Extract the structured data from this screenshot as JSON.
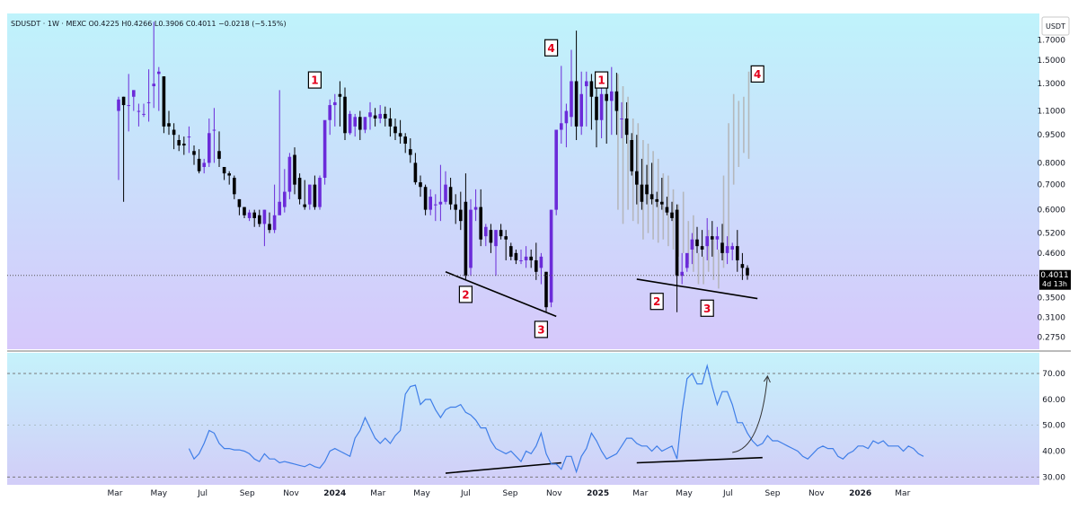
{
  "header": {
    "symbol": "SDUSDT",
    "interval": "1W",
    "exchange": "MEXC",
    "ohlc": "O0.4225  H0.4266  L0.3906  C0.4011  −0.0218 (−5.15%)",
    "currency": "USDT"
  },
  "price_label": {
    "value": "0.4011",
    "countdown": "4d 13h"
  },
  "colors": {
    "up": "#6b2bd9",
    "down": "#000000",
    "projection": "#b0b0b0",
    "rsi_line": "#3f7ee8",
    "marker_text": "#e3001b",
    "price_bg_top": "#bff3fb",
    "price_bg_bottom": "#d6c8fb",
    "rsi_bg_top": "#c5f2fb",
    "rsi_bg_bottom": "#d2cdf8"
  },
  "chart_data": [
    {
      "type": "candlestick",
      "name": "price",
      "interval": "1W",
      "y_scale": "log",
      "ylim": [
        0.255,
        2.0
      ],
      "y_ticks": [
        "1.7000",
        "1.5000",
        "1.3000",
        "1.1000",
        "0.9500",
        "0.8000",
        "0.7000",
        "0.6000",
        "0.5200",
        "0.4600",
        "0.3500",
        "0.3100",
        "0.2750"
      ],
      "x_ticks": [
        "Mar",
        "May",
        "Jul",
        "Sep",
        "Nov",
        "2024",
        "Mar",
        "May",
        "Jul",
        "Sep",
        "Nov",
        "2025",
        "Mar",
        "May",
        "Jul",
        "Sep",
        "Nov",
        "2026",
        "Mar"
      ],
      "start_date": "2023-03-06",
      "candles": [
        [
          1.1,
          1.2,
          1.18,
          0.72
        ],
        [
          1.2,
          1.2,
          1.14,
          0.63
        ],
        [
          1.14,
          1.38,
          1.14,
          0.97
        ],
        [
          1.2,
          1.25,
          1.25,
          1.1
        ],
        [
          1.1,
          1.15,
          1.1,
          1.0
        ],
        [
          1.08,
          1.15,
          1.08,
          1.06
        ],
        [
          1.16,
          1.42,
          1.16,
          1.03
        ],
        [
          1.28,
          1.9,
          1.3,
          1.12
        ],
        [
          1.38,
          1.44,
          1.4,
          1.1
        ],
        [
          1.36,
          1.36,
          1.0,
          0.96
        ],
        [
          1.02,
          1.1,
          1.0,
          0.95
        ],
        [
          0.98,
          1.02,
          0.95,
          0.87
        ],
        [
          0.92,
          0.95,
          0.89,
          0.86
        ],
        [
          0.9,
          0.94,
          0.89,
          0.84
        ],
        [
          0.94,
          1.0,
          0.94,
          0.85
        ],
        [
          0.86,
          0.89,
          0.84,
          0.79
        ],
        [
          0.82,
          0.87,
          0.76,
          0.75
        ],
        [
          0.78,
          0.82,
          0.8,
          0.75
        ],
        [
          0.8,
          1.05,
          0.96,
          0.78
        ],
        [
          0.98,
          1.12,
          0.98,
          0.8
        ],
        [
          0.86,
          0.97,
          0.82,
          0.78
        ],
        [
          0.78,
          0.78,
          0.75,
          0.72
        ],
        [
          0.75,
          0.76,
          0.74,
          0.7
        ],
        [
          0.73,
          0.74,
          0.66,
          0.64
        ],
        [
          0.64,
          0.64,
          0.61,
          0.58
        ],
        [
          0.61,
          0.61,
          0.58,
          0.57
        ],
        [
          0.57,
          0.6,
          0.59,
          0.56
        ],
        [
          0.59,
          0.6,
          0.57,
          0.54
        ],
        [
          0.58,
          0.6,
          0.55,
          0.54
        ],
        [
          0.55,
          0.6,
          0.6,
          0.48
        ],
        [
          0.55,
          0.59,
          0.53,
          0.52
        ],
        [
          0.53,
          0.7,
          0.58,
          0.52
        ],
        [
          0.58,
          1.25,
          0.63,
          0.6
        ],
        [
          0.61,
          0.77,
          0.67,
          0.59
        ],
        [
          0.67,
          0.85,
          0.83,
          0.64
        ],
        [
          0.84,
          0.88,
          0.7,
          0.66
        ],
        [
          0.73,
          0.75,
          0.64,
          0.62
        ],
        [
          0.62,
          0.72,
          0.61,
          0.6
        ],
        [
          0.62,
          0.7,
          0.7,
          0.6
        ],
        [
          0.7,
          0.74,
          0.61,
          0.6
        ],
        [
          0.61,
          0.74,
          0.73,
          0.6
        ],
        [
          0.73,
          1.0,
          1.04,
          0.7
        ],
        [
          1.04,
          1.18,
          1.14,
          0.95
        ],
        [
          1.14,
          1.22,
          1.16,
          1.0
        ],
        [
          1.22,
          1.32,
          1.2,
          1.0
        ],
        [
          1.2,
          1.27,
          0.96,
          0.92
        ],
        [
          0.96,
          1.1,
          1.08,
          0.95
        ],
        [
          1.0,
          1.08,
          1.06,
          0.94
        ],
        [
          1.06,
          1.1,
          0.98,
          0.92
        ],
        [
          0.98,
          1.06,
          1.06,
          0.96
        ],
        [
          1.06,
          1.16,
          1.09,
          0.98
        ],
        [
          1.07,
          1.12,
          1.05,
          1.0
        ],
        [
          1.05,
          1.14,
          1.08,
          1.02
        ],
        [
          1.08,
          1.13,
          1.05,
          1.0
        ],
        [
          1.05,
          1.12,
          1.0,
          0.94
        ],
        [
          1.0,
          1.05,
          0.96,
          0.92
        ],
        [
          0.96,
          1.04,
          0.94,
          0.9
        ],
        [
          0.94,
          0.96,
          0.9,
          0.85
        ],
        [
          0.87,
          0.93,
          0.84,
          0.8
        ],
        [
          0.8,
          0.85,
          0.71,
          0.7
        ],
        [
          0.71,
          0.74,
          0.69,
          0.65
        ],
        [
          0.69,
          0.7,
          0.6,
          0.58
        ],
        [
          0.6,
          0.68,
          0.65,
          0.58
        ],
        [
          0.62,
          0.66,
          0.62,
          0.56
        ],
        [
          0.62,
          0.79,
          0.63,
          0.56
        ],
        [
          0.63,
          0.76,
          0.7,
          0.62
        ],
        [
          0.69,
          0.73,
          0.62,
          0.6
        ],
        [
          0.62,
          0.66,
          0.6,
          0.55
        ],
        [
          0.6,
          0.67,
          0.56,
          0.53
        ],
        [
          0.63,
          0.75,
          0.4,
          0.39
        ],
        [
          0.42,
          0.64,
          0.6,
          0.4
        ],
        [
          0.6,
          0.68,
          0.61,
          0.56
        ],
        [
          0.61,
          0.68,
          0.5,
          0.48
        ],
        [
          0.51,
          0.55,
          0.54,
          0.48
        ],
        [
          0.53,
          0.55,
          0.49,
          0.46
        ],
        [
          0.48,
          0.53,
          0.53,
          0.4
        ],
        [
          0.53,
          0.55,
          0.51,
          0.5
        ],
        [
          0.51,
          0.53,
          0.5,
          0.44
        ],
        [
          0.48,
          0.49,
          0.45,
          0.44
        ],
        [
          0.46,
          0.47,
          0.44,
          0.43
        ],
        [
          0.44,
          0.47,
          0.44,
          0.43
        ],
        [
          0.44,
          0.48,
          0.45,
          0.42
        ],
        [
          0.45,
          0.47,
          0.44,
          0.42
        ],
        [
          0.44,
          0.49,
          0.41,
          0.39
        ],
        [
          0.42,
          0.46,
          0.45,
          0.38
        ],
        [
          0.41,
          0.41,
          0.33,
          0.32
        ],
        [
          0.34,
          0.6,
          0.6,
          0.33
        ],
        [
          0.6,
          0.98,
          0.98,
          0.58
        ],
        [
          0.98,
          1.45,
          1.02,
          0.9
        ],
        [
          1.02,
          1.15,
          1.1,
          0.88
        ],
        [
          1.06,
          1.6,
          1.32,
          1.0
        ],
        [
          1.32,
          1.8,
          1.0,
          0.92
        ],
        [
          1.0,
          1.4,
          1.22,
          0.95
        ],
        [
          1.28,
          1.4,
          1.32,
          1.0
        ],
        [
          1.32,
          1.38,
          1.2,
          0.98
        ],
        [
          1.2,
          1.33,
          1.04,
          0.88
        ],
        [
          1.04,
          1.33,
          1.22,
          0.93
        ],
        [
          1.22,
          1.35,
          1.17,
          0.9
        ],
        [
          1.17,
          1.44,
          1.24,
          0.95
        ],
        [
          1.24,
          1.39,
          1.1,
          0.95
        ],
        [
          1.05,
          1.16,
          1.05,
          0.93
        ],
        [
          1.05,
          1.16,
          0.95,
          0.9
        ],
        [
          0.92,
          0.96,
          0.76,
          0.74
        ],
        [
          0.76,
          0.95,
          0.7,
          0.62
        ],
        [
          0.7,
          0.82,
          0.63,
          0.6
        ],
        [
          0.7,
          0.79,
          0.66,
          0.62
        ],
        [
          0.66,
          0.8,
          0.64,
          0.62
        ],
        [
          0.64,
          0.67,
          0.63,
          0.61
        ],
        [
          0.63,
          0.73,
          0.62,
          0.6
        ],
        [
          0.61,
          0.65,
          0.59,
          0.58
        ],
        [
          0.59,
          0.63,
          0.57,
          0.56
        ],
        [
          0.6,
          0.62,
          0.4,
          0.32
        ],
        [
          0.4,
          0.46,
          0.41,
          0.38
        ],
        [
          0.42,
          0.45,
          0.46,
          0.41
        ],
        [
          0.47,
          0.52,
          0.5,
          0.43
        ],
        [
          0.5,
          0.54,
          0.48,
          0.46
        ],
        [
          0.48,
          0.53,
          0.47,
          0.45
        ],
        [
          0.48,
          0.57,
          0.51,
          0.44
        ],
        [
          0.51,
          0.56,
          0.5,
          0.45
        ],
        [
          0.5,
          0.54,
          0.51,
          0.47
        ],
        [
          0.49,
          0.55,
          0.46,
          0.44
        ],
        [
          0.46,
          0.51,
          0.48,
          0.43
        ],
        [
          0.47,
          0.49,
          0.48,
          0.44
        ],
        [
          0.48,
          0.53,
          0.44,
          0.41
        ],
        [
          0.43,
          0.46,
          0.42,
          0.39
        ],
        [
          0.42,
          0.4266,
          0.4011,
          0.3906
        ]
      ],
      "projection": [
        [
          0.6,
          1.38
        ],
        [
          0.55,
          1.28
        ],
        [
          0.6,
          1.2
        ],
        [
          0.56,
          1.05
        ],
        [
          0.55,
          1.02
        ],
        [
          0.5,
          0.92
        ],
        [
          0.52,
          0.9
        ],
        [
          0.5,
          0.86
        ],
        [
          0.49,
          0.82
        ],
        [
          0.5,
          0.75
        ],
        [
          0.48,
          0.74
        ],
        [
          0.47,
          0.68
        ],
        [
          0.45,
          0.62
        ],
        [
          0.46,
          0.67
        ],
        [
          0.43,
          0.56
        ],
        [
          0.41,
          0.58
        ],
        [
          0.38,
          0.46
        ],
        [
          0.38,
          0.45
        ],
        [
          0.41,
          0.53
        ],
        [
          0.39,
          0.5
        ],
        [
          0.37,
          0.47
        ],
        [
          0.42,
          0.74
        ],
        [
          0.47,
          1.02
        ],
        [
          0.7,
          1.22
        ],
        [
          0.78,
          1.17
        ],
        [
          0.85,
          1.2
        ],
        [
          0.82,
          1.4
        ]
      ],
      "annotations": [
        {
          "label": "1",
          "date": "2023-12-04",
          "price": 1.33
        },
        {
          "label": "2",
          "date": "2024-07-01",
          "price": 0.357
        },
        {
          "label": "3",
          "date": "2024-10-14",
          "price": 0.288
        },
        {
          "label": "4",
          "date": "2024-10-28",
          "price": 1.62
        },
        {
          "label": "1",
          "date": "2025-01-06",
          "price": 1.33
        },
        {
          "label": "2",
          "date": "2025-03-24",
          "price": 0.342
        },
        {
          "label": "3",
          "date": "2025-06-02",
          "price": 0.328
        },
        {
          "label": "4",
          "date": "2025-08-11",
          "price": 1.38
        }
      ],
      "trendlines": [
        {
          "from": [
            "2024-06-03",
            0.41
          ],
          "to": [
            "2024-11-04",
            0.312
          ]
        },
        {
          "from": [
            "2025-02-24",
            0.392
          ],
          "to": [
            "2025-08-11",
            0.348
          ]
        }
      ],
      "last_price": 0.4011
    },
    {
      "type": "line",
      "name": "rsi",
      "ylim": [
        27,
        78
      ],
      "y_ticks": [
        "70.00",
        "60.00",
        "50.00",
        "40.00",
        "30.00"
      ],
      "bands": [
        70,
        30
      ],
      "start_date": "2023-06-12",
      "values": [
        41,
        37,
        39,
        43,
        48,
        47,
        43,
        41,
        41,
        40.5,
        40.5,
        40,
        39,
        37,
        36,
        39,
        37,
        37,
        35.5,
        36,
        35.5,
        35,
        34.5,
        34,
        35,
        34,
        33.5,
        36,
        40,
        41,
        40,
        39,
        38,
        45,
        48,
        53,
        49,
        45,
        43,
        45,
        43,
        46,
        48,
        62,
        65,
        65.5,
        58,
        60,
        60,
        56,
        53,
        56,
        57,
        57,
        58,
        55,
        54,
        52,
        49,
        49,
        44,
        41,
        40,
        39,
        40,
        38,
        36,
        40,
        39,
        42,
        47,
        39,
        35,
        35,
        33,
        38,
        38,
        32,
        38,
        41,
        47,
        44,
        40,
        37,
        38,
        39,
        42,
        45,
        45,
        43,
        42,
        42,
        40,
        42,
        40,
        41,
        42,
        37,
        55,
        68,
        70,
        66,
        66,
        73,
        65,
        58,
        63,
        63,
        58,
        51,
        51,
        47,
        44,
        42,
        43,
        46,
        44,
        44,
        43,
        42,
        41,
        40,
        38,
        37,
        39,
        41,
        42,
        41,
        41,
        38,
        37,
        39,
        40,
        42,
        42,
        41,
        44,
        43,
        44,
        42,
        42,
        42,
        40,
        42,
        41,
        39,
        38
      ],
      "trendlines": [
        {
          "from": [
            "2024-06-03",
            31.5
          ],
          "to": [
            "2024-11-11",
            35.5
          ]
        },
        {
          "from": [
            "2025-02-24",
            35.5
          ],
          "to": [
            "2025-08-18",
            37.5
          ]
        }
      ],
      "arrow": {
        "from": [
          "2025-07-07",
          39.5
        ],
        "to": [
          "2025-08-25",
          69
        ]
      }
    }
  ]
}
